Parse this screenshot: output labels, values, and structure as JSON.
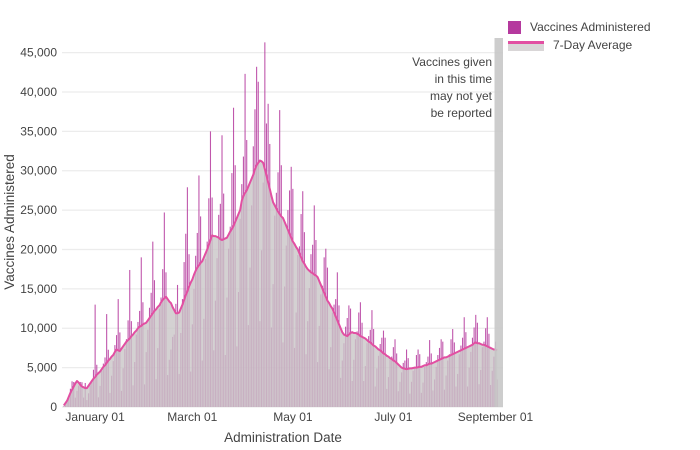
{
  "chart_data": {
    "type": "bar",
    "title": "",
    "xlabel": "Administration Date",
    "ylabel": "Vaccines Administered",
    "start_date": "2020-12-13",
    "ylim": [
      0,
      47000
    ],
    "grid": true,
    "legend_position": "top-right",
    "ytick_values": [
      0,
      5000,
      10000,
      15000,
      20000,
      25000,
      30000,
      35000,
      40000,
      45000
    ],
    "ytick_labels": [
      "0",
      "5,000",
      "10,000",
      "15,000",
      "20,000",
      "25,000",
      "30,000",
      "35,000",
      "40,000",
      "45,000"
    ],
    "x_ticks": [
      {
        "index": 19,
        "label": "January 01"
      },
      {
        "index": 78,
        "label": "March 01"
      },
      {
        "index": 139,
        "label": "May 01"
      },
      {
        "index": 200,
        "label": "July 01"
      },
      {
        "index": 262,
        "label": "September 01"
      }
    ],
    "series": [
      {
        "name": "Vaccines Administered",
        "type": "bar",
        "color": "#b5399e",
        "values": [
          80,
          290,
          770,
          1360,
          2320,
          3260,
          3170,
          1190,
          2050,
          2710,
          3180,
          3150,
          1200,
          3050,
          880,
          1740,
          2760,
          3390,
          4730,
          13000,
          5360,
          1230,
          2680,
          4590,
          5510,
          6290,
          11800,
          7270,
          1790,
          3970,
          5830,
          7860,
          9130,
          13700,
          9470,
          2050,
          4920,
          7360,
          8610,
          11000,
          17400,
          10900,
          2750,
          5710,
          9190,
          10800,
          12200,
          19000,
          13300,
          2870,
          6970,
          9820,
          12600,
          14500,
          21000,
          16100,
          3530,
          7480,
          12500,
          13900,
          17500,
          24700,
          17100,
          4060,
          6000,
          7300,
          8900,
          9200,
          13100,
          15500,
          4200,
          9400,
          13700,
          18400,
          22000,
          27900,
          19400,
          4500,
          10500,
          15000,
          19200,
          22100,
          29400,
          24200,
          5900,
          11200,
          18800,
          21000,
          26500,
          35000,
          26600,
          7200,
          13500,
          18900,
          24400,
          25800,
          34500,
          27100,
          6600,
          13900,
          20100,
          22900,
          29700,
          38000,
          30700,
          7700,
          14600,
          23900,
          28300,
          31800,
          42300,
          33900,
          10400,
          17700,
          25600,
          33100,
          37800,
          43200,
          41300,
          10900,
          19900,
          28500,
          46300,
          36000,
          38500,
          33400,
          10100,
          15600,
          24300,
          27200,
          29800,
          37700,
          30700,
          8200,
          15300,
          20500,
          25000,
          27500,
          30500,
          27700,
          7500,
          12000,
          19300,
          20400,
          24500,
          27400,
          22200,
          6700,
          10900,
          15100,
          19400,
          20600,
          25600,
          21200,
          5700,
          10300,
          14300,
          15400,
          19000,
          20100,
          17700,
          4800,
          7600,
          12000,
          13000,
          13700,
          17100,
          12900,
          3700,
          5900,
          8100,
          10200,
          11300,
          12900,
          12500,
          3300,
          6000,
          8600,
          9600,
          12000,
          13300,
          10700,
          3300,
          5200,
          8100,
          9000,
          9800,
          12300,
          9900,
          2600,
          4900,
          6500,
          8000,
          8800,
          9700,
          8800,
          2300,
          3800,
          6000,
          6400,
          7600,
          8600,
          6800,
          2000,
          3200,
          4400,
          5600,
          5900,
          7300,
          6200,
          1700,
          3200,
          4600,
          5100,
          6600,
          7300,
          6700,
          1800,
          3100,
          5100,
          5700,
          6400,
          8500,
          6800,
          2100,
          3500,
          5100,
          6600,
          7500,
          8600,
          8300,
          2200,
          4000,
          5900,
          6700,
          8600,
          9900,
          8200,
          2600,
          4200,
          6700,
          7800,
          8800,
          11400,
          9500,
          2600,
          5000,
          7000,
          8800,
          10100,
          11700,
          10700,
          2900,
          4700,
          7600,
          8300,
          10000,
          11400,
          9300,
          2800,
          4600,
          6400,
          8300,
          3500
        ]
      },
      {
        "name": "7-Day Average",
        "type": "line",
        "color": "#e24fa2",
        "area_color": "#c9c6c7",
        "values": [
          200,
          500,
          800,
          1300,
          1800,
          2200,
          2600,
          3000,
          3300,
          3100,
          2800,
          2600,
          2500,
          2400,
          2400,
          2700,
          3000,
          3300,
          3600,
          3800,
          4100,
          4300,
          4500,
          4800,
          5100,
          5300,
          5600,
          5900,
          6100,
          6400,
          6600,
          7000,
          7300,
          7200,
          7100,
          7400,
          7700,
          8000,
          8300,
          8500,
          8700,
          9000,
          9200,
          9500,
          9700,
          10000,
          10200,
          10300,
          10500,
          10600,
          10700,
          11000,
          11300,
          11600,
          11900,
          12200,
          12400,
          12700,
          12900,
          13300,
          13600,
          13800,
          14000,
          13700,
          13400,
          13200,
          12700,
          12300,
          11900,
          11900,
          12000,
          12500,
          13000,
          13600,
          14200,
          14700,
          15300,
          15800,
          16200,
          16800,
          17300,
          17700,
          18000,
          18300,
          18500,
          19000,
          19500,
          20000,
          20600,
          21200,
          21800,
          21700,
          21700,
          21600,
          21500,
          21300,
          21200,
          21300,
          21400,
          21500,
          21900,
          22300,
          22600,
          23000,
          23500,
          24000,
          24500,
          25000,
          26200,
          26800,
          27200,
          27500,
          28000,
          28500,
          29000,
          29500,
          30200,
          30700,
          31000,
          31300,
          31200,
          31000,
          30200,
          29400,
          28500,
          27700,
          26800,
          26000,
          25600,
          25200,
          24800,
          24500,
          24200,
          24000,
          23500,
          23000,
          22500,
          22000,
          21500,
          21000,
          20700,
          20300,
          20000,
          19500,
          19000,
          18500,
          18200,
          17800,
          17500,
          17300,
          17100,
          17000,
          16800,
          16700,
          16500,
          16000,
          15500,
          15000,
          14500,
          14000,
          13500,
          13200,
          12800,
          12500,
          12000,
          11500,
          11000,
          10500,
          10000,
          9500,
          9200,
          9100,
          9000,
          9200,
          9400,
          9500,
          9400,
          9400,
          9300,
          9200,
          9000,
          8900,
          8800,
          8700,
          8500,
          8300,
          8200,
          8000,
          7800,
          7700,
          7500,
          7300,
          7200,
          7000,
          6800,
          6700,
          6500,
          6400,
          6200,
          6100,
          5900,
          5800,
          5600,
          5400,
          5200,
          5000,
          4900,
          4850,
          4800,
          4850,
          4900,
          4900,
          4950,
          5000,
          5000,
          5050,
          5100,
          5100,
          5200,
          5300,
          5300,
          5400,
          5500,
          5500,
          5600,
          5700,
          5800,
          5900,
          6000,
          6100,
          6200,
          6300,
          6300,
          6400,
          6500,
          6600,
          6700,
          6800,
          6900,
          7000,
          7100,
          7200,
          7300,
          7400,
          7500,
          7600,
          7700,
          7800,
          7900,
          8100,
          8200,
          8100,
          8100,
          8000,
          7900,
          7900,
          7800,
          7700,
          7600,
          7500,
          7400,
          7300,
          7300,
          7200
        ]
      }
    ],
    "annotation": {
      "lines": [
        "Vaccines given",
        "in this time",
        "may not yet",
        "be reported"
      ]
    },
    "unreported_band": {
      "color": "#c6c6c6"
    },
    "grid_color": "#ececec",
    "text_color": "#444444"
  },
  "legend": {
    "items": [
      {
        "label": "Vaccines Administered",
        "swatch": "square"
      },
      {
        "label": "7-Day Average",
        "swatch": "line"
      }
    ]
  }
}
